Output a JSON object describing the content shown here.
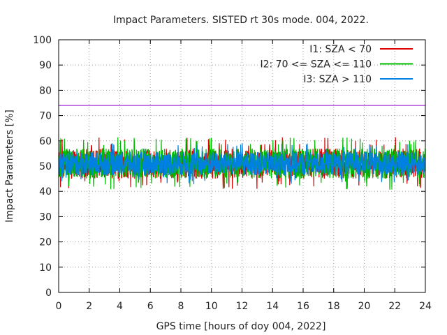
{
  "chart_data": {
    "type": "line",
    "title": "Impact Parameters. SISTED rt 30s mode. 004, 2022.",
    "xlabel": "GPS time [hours of doy 004, 2022]",
    "ylabel": "Impact Parameters [%]",
    "xlim": [
      0,
      24
    ],
    "ylim": [
      0,
      100
    ],
    "xticks": [
      0,
      2,
      4,
      6,
      8,
      10,
      12,
      14,
      16,
      18,
      20,
      22,
      24
    ],
    "yticks": [
      0,
      10,
      20,
      30,
      40,
      50,
      60,
      70,
      80,
      90,
      100
    ],
    "grid": true,
    "legend_position": "top-right",
    "reference_line": {
      "y": 74,
      "color": "#9400d3"
    },
    "series": [
      {
        "name": "I1: SZA < 70",
        "color": "#dd0000",
        "mean": 51,
        "typical_min": 44,
        "typical_max": 58,
        "extreme_min": 41,
        "extreme_max": 63.5
      },
      {
        "name": "I2: 70 <= SZA <= 110",
        "color": "#00bb00",
        "mean": 51,
        "typical_min": 44,
        "typical_max": 58,
        "extreme_min": 39.5,
        "extreme_max": 62.5
      },
      {
        "name": "I3: SZA > 110",
        "color": "#0080e0",
        "mean": 51,
        "typical_min": 45.5,
        "typical_max": 56.5,
        "extreme_min": 41,
        "extreme_max": 59
      }
    ]
  }
}
